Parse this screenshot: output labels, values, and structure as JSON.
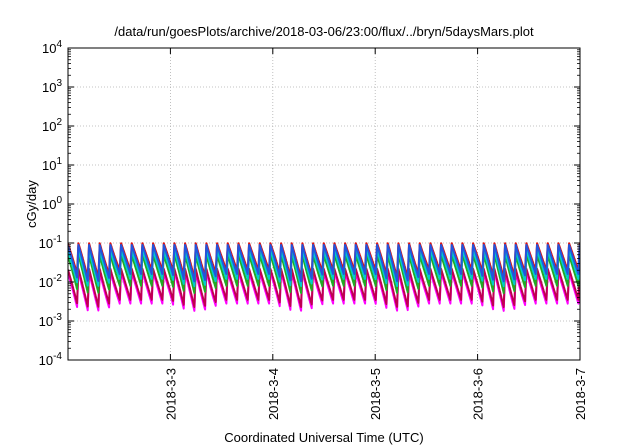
{
  "chart_data": {
    "type": "line",
    "title": "/data/run/goesPlots/archive/2018-03-06/23:00/flux/../bryn/5daysMars.plot",
    "xlabel": "Coordinated Universal Time (UTC)",
    "ylabel": "cGy/day",
    "x_range": [
      "2018-03-02T00:00",
      "2018-03-07T00:00"
    ],
    "x_ticks": [
      "2018-3-3",
      "2018-3-4",
      "2018-3-5",
      "2018-3-6",
      "2018-3-7"
    ],
    "y_scale": "log",
    "ylim": [
      0.0001,
      10000
    ],
    "y_ticks": [
      {
        "base": "10",
        "exp": "-4",
        "value": 0.0001
      },
      {
        "base": "10",
        "exp": "-3",
        "value": 0.001
      },
      {
        "base": "10",
        "exp": "-2",
        "value": 0.01
      },
      {
        "base": "10",
        "exp": "-1",
        "value": 0.1
      },
      {
        "base": "10",
        "exp": "0",
        "value": 1
      },
      {
        "base": "10",
        "exp": "1",
        "value": 10
      },
      {
        "base": "10",
        "exp": "2",
        "value": 100
      },
      {
        "base": "10",
        "exp": "3",
        "value": 1000
      },
      {
        "base": "10",
        "exp": "4",
        "value": 10000
      }
    ],
    "grid": true,
    "period_hours": 2.5,
    "series": [
      {
        "color": "#ff00ff",
        "peak": 0.018,
        "trough": 0.0028
      },
      {
        "color": "#bf0050",
        "peak": 0.022,
        "trough": 0.0035
      },
      {
        "color": "#22aa22",
        "peak": 0.05,
        "trough": 0.008
      },
      {
        "color": "#00cccc",
        "peak": 0.065,
        "trough": 0.012
      },
      {
        "color": "#dd1111",
        "peak": 0.1,
        "trough": 0.02
      },
      {
        "color": "#2255dd",
        "peak": 0.09,
        "trough": 0.016
      }
    ]
  }
}
